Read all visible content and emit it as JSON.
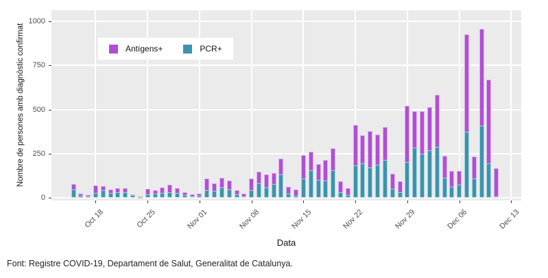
{
  "chart_data": {
    "type": "bar",
    "stacked": true,
    "title": "",
    "xlabel": "Data",
    "ylabel": "Nombre de persones amb diagnòstic confirmat",
    "ylim": [
      0,
      1000
    ],
    "yticks": [
      0,
      250,
      500,
      750,
      1000
    ],
    "xticks": [
      "Oct 18",
      "Oct 25",
      "Nov 01",
      "Nov 08",
      "Nov 15",
      "Nov 22",
      "Nov 29",
      "Dec 06",
      "Dec 13"
    ],
    "grid": true,
    "plot_background": "#ebebeb",
    "gridline_color": "#ffffff",
    "legend_position": "top-left-inset",
    "x": [
      "Oct 15",
      "Oct 16",
      "Oct 17",
      "Oct 18",
      "Oct 19",
      "Oct 20",
      "Oct 21",
      "Oct 22",
      "Oct 23",
      "Oct 24",
      "Oct 25",
      "Oct 26",
      "Oct 27",
      "Oct 28",
      "Oct 29",
      "Oct 30",
      "Oct 31",
      "Nov 01",
      "Nov 02",
      "Nov 03",
      "Nov 04",
      "Nov 05",
      "Nov 06",
      "Nov 07",
      "Nov 08",
      "Nov 09",
      "Nov 10",
      "Nov 11",
      "Nov 12",
      "Nov 13",
      "Nov 14",
      "Nov 15",
      "Nov 16",
      "Nov 17",
      "Nov 18",
      "Nov 19",
      "Nov 20",
      "Nov 21",
      "Nov 22",
      "Nov 23",
      "Nov 24",
      "Nov 25",
      "Nov 26",
      "Nov 27",
      "Nov 28",
      "Nov 29",
      "Nov 30",
      "Dec 01",
      "Dec 02",
      "Dec 03",
      "Dec 04",
      "Dec 05",
      "Dec 06",
      "Dec 07",
      "Dec 08",
      "Dec 09",
      "Dec 10",
      "Dec 11"
    ],
    "series": [
      {
        "name": "Antígens+",
        "color": "#b04fd6",
        "values": [
          31,
          9,
          11,
          43,
          23,
          21,
          24,
          25,
          4,
          6,
          30,
          20,
          32,
          40,
          28,
          19,
          11,
          11,
          66,
          45,
          56,
          49,
          23,
          19,
          67,
          67,
          73,
          65,
          91,
          39,
          36,
          134,
          105,
          88,
          118,
          122,
          62,
          39,
          232,
          159,
          205,
          170,
          188,
          85,
          62,
          316,
          206,
          242,
          242,
          296,
          127,
          87,
          78,
          553,
          122,
          549,
          475,
          160
        ]
      },
      {
        "name": "PCR+",
        "color": "#3d93ad",
        "values": [
          48,
          13,
          3,
          27,
          43,
          26,
          31,
          30,
          14,
          2,
          20,
          24,
          26,
          33,
          27,
          14,
          9,
          11,
          43,
          38,
          57,
          47,
          21,
          6,
          42,
          81,
          60,
          77,
          132,
          25,
          12,
          109,
          157,
          103,
          96,
          157,
          31,
          14,
          181,
          194,
          171,
          187,
          214,
          51,
          31,
          204,
          285,
          249,
          270,
          289,
          112,
          64,
          73,
          374,
          110,
          409,
          194,
          8
        ]
      }
    ]
  },
  "footer": {
    "text": "Font: Registre COVID-19, Departament de Salut, Generalitat de Catalunya."
  }
}
